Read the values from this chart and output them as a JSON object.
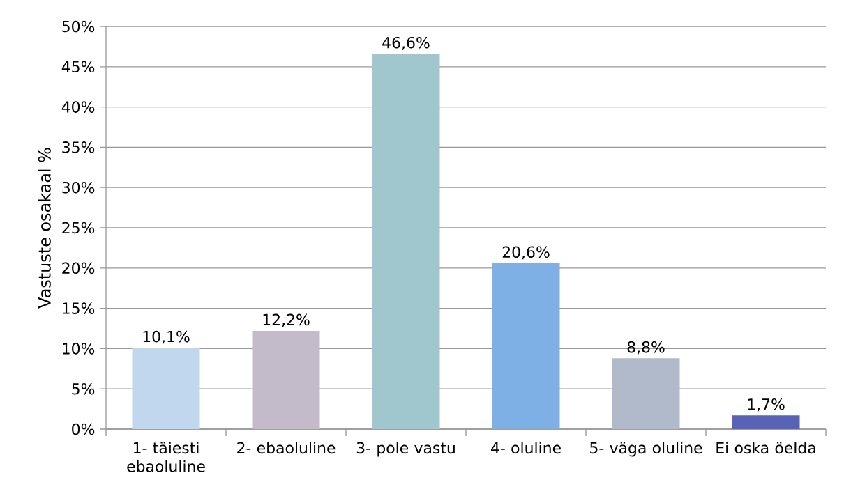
{
  "chart_data": {
    "type": "bar",
    "ylabel": "Vastuste osakaal %",
    "categories": [
      "1- täiesti ebaoluline",
      "2- ebaoluline",
      "3- pole vastu",
      "4- oluline",
      "5- väga oluline",
      "Ei oska öelda"
    ],
    "values": [
      10.1,
      12.2,
      46.6,
      20.6,
      8.8,
      1.7
    ],
    "value_labels": [
      "10,1%",
      "12,2%",
      "46,6%",
      "20,6%",
      "8,8%",
      "1,7%"
    ],
    "colors": [
      "#c0d7ee",
      "#c3bbc9",
      "#9fc7cd",
      "#7eb0e6",
      "#b0bacb",
      "#5862b7"
    ],
    "ylim": [
      0,
      50
    ],
    "yticks": [
      {
        "value": 0,
        "label": "0%"
      },
      {
        "value": 5,
        "label": "5%"
      },
      {
        "value": 10,
        "label": "10%"
      },
      {
        "value": 15,
        "label": "15%"
      },
      {
        "value": 20,
        "label": "20%"
      },
      {
        "value": 25,
        "label": "25%"
      },
      {
        "value": 30,
        "label": "30%"
      },
      {
        "value": 35,
        "label": "35%"
      },
      {
        "value": 40,
        "label": "40%"
      },
      {
        "value": 45,
        "label": "45%"
      },
      {
        "value": 50,
        "label": "50%"
      }
    ],
    "grid": "y"
  }
}
